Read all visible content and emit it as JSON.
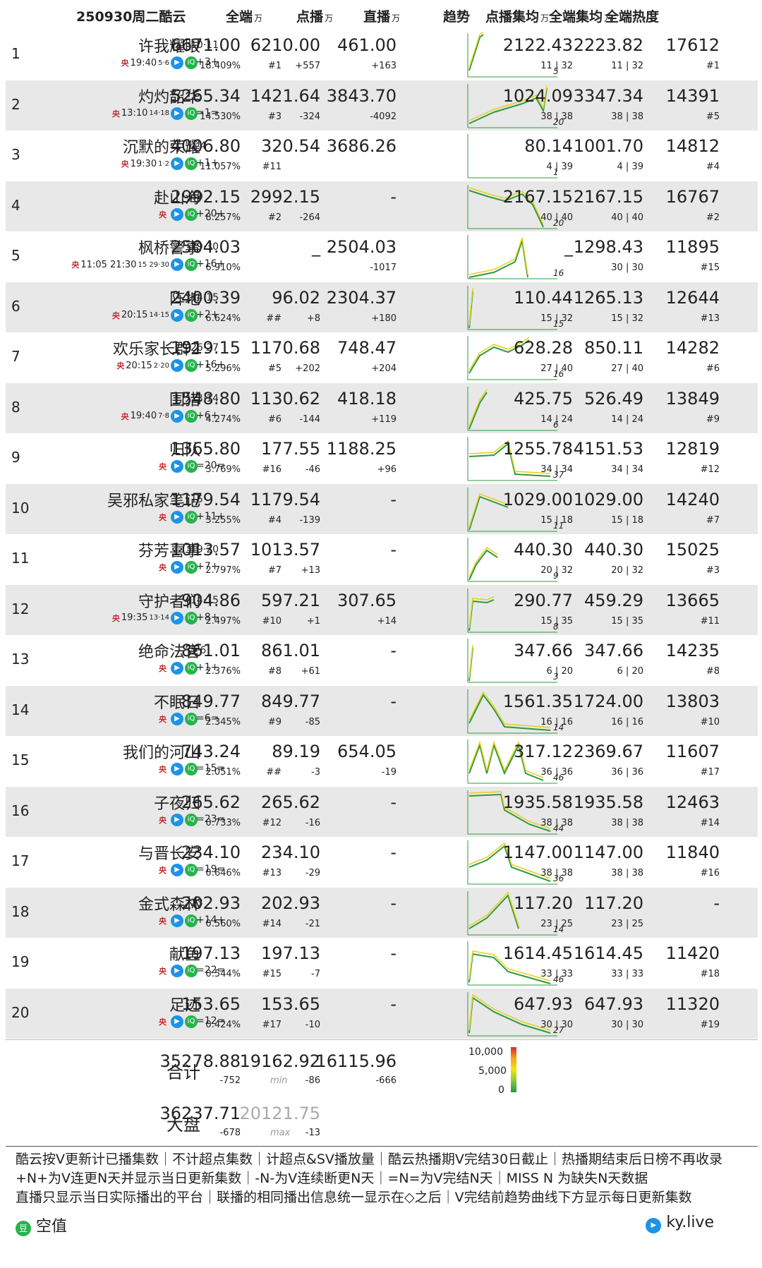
{
  "header": {
    "title": "250930周二酷云",
    "all": "全端",
    "vod": "点播",
    "live": "直播",
    "trend": "趋势",
    "vod_avg": "点播集均",
    "all_avg": "全端集均",
    "heat": "全端热度",
    "unit": "万"
  },
  "rows": [
    {
      "rank": "1",
      "name": "许我耀眼",
      "eps": "10·11",
      "time": "19:40",
      "sub_eps": "5·6",
      "upd": "+3+",
      "all": "6671.00",
      "share": "18.409%",
      "vod": "6210.00",
      "vod_rank": "#1",
      "vod_d": "+557",
      "live": "461.00",
      "live_d": "+163",
      "vod_avg": "2122.43",
      "vod_avg_r": "11 | 32",
      "all_avg": "2223.82",
      "all_avg_r": "11 | 32",
      "heat": "17612",
      "heat_r": "#1",
      "days": "5"
    },
    {
      "rank": "2",
      "name": "灼灼韶华",
      "eps": "",
      "time": "13:10",
      "sub_eps": "14·18",
      "upd": "=1=",
      "all": "5265.34",
      "share": "14.530%",
      "vod": "1421.64",
      "vod_rank": "#3",
      "vod_d": "-324",
      "live": "3843.70",
      "live_d": "-4092",
      "vod_avg": "1024.09",
      "vod_avg_r": "38 | 38",
      "all_avg": "3347.34",
      "all_avg_r": "38 | 38",
      "heat": "14391",
      "heat_r": "#5",
      "days": "20"
    },
    {
      "rank": "3",
      "name": "沉默的荣耀",
      "eps": "1·4",
      "time": "19:30",
      "sub_eps": "1·2",
      "upd": "+1+",
      "all": "4006.80",
      "share": "11.057%",
      "vod": "320.54",
      "vod_rank": "#11",
      "vod_d": "",
      "live": "3686.26",
      "live_d": "",
      "vod_avg": "80.14",
      "vod_avg_r": "4 | 39",
      "all_avg": "1001.70",
      "all_avg_r": "4 | 39",
      "heat": "14812",
      "heat_r": "#4",
      "days": "1"
    },
    {
      "rank": "4",
      "name": "赴山海",
      "eps": "40",
      "time": "",
      "sub_eps": "",
      "upd": "+20+",
      "all": "2992.15",
      "share": "8.257%",
      "vod": "2992.15",
      "vod_rank": "#2",
      "vod_d": "-264",
      "live": "-",
      "live_d": "",
      "vod_avg": "2167.15",
      "vod_avg_r": "40 | 40",
      "all_avg": "2167.15",
      "all_avg_r": "40 | 40",
      "heat": "16767",
      "heat_r": "#2",
      "days": "20"
    },
    {
      "rank": "5",
      "name": "枫桥警事",
      "eps": "29·30",
      "time": "11:05  21:30",
      "sub_eps": "15  29·30",
      "upd": "+16+",
      "all": "2504.03",
      "share": "6.910%",
      "vod": "_",
      "vod_rank": "",
      "vod_d": "",
      "live": "2504.03",
      "live_d": "-1017",
      "vod_avg": "_",
      "vod_avg_r": "",
      "all_avg": "1298.43",
      "all_avg_r": "30 | 30",
      "heat": "11895",
      "heat_r": "#15",
      "days": "16"
    },
    {
      "rank": "6",
      "name": "阵地",
      "eps": "14·15",
      "time": "20:15",
      "sub_eps": "14·15",
      "upd": "+2+",
      "all": "2400.39",
      "share": "6.624%",
      "vod": "96.02",
      "vod_rank": "##",
      "vod_d": "+8",
      "live": "2304.37",
      "live_d": "+180",
      "vod_avg": "110.44",
      "vod_avg_r": "15 | 32",
      "all_avg": "1265.13",
      "all_avg_r": "15 | 32",
      "heat": "12644",
      "heat_r": "#13",
      "days": "15"
    },
    {
      "rank": "7",
      "name": "欢乐家长群2",
      "eps": "26·27",
      "time": "20:15",
      "sub_eps": "2·20",
      "upd": "+16+",
      "all": "1919.15",
      "share": "5.296%",
      "vod": "1170.68",
      "vod_rank": "#5",
      "vod_d": "+202",
      "live": "748.47",
      "live_d": "+204",
      "vod_avg": "628.28",
      "vod_avg_r": "27 | 40",
      "all_avg": "850.11",
      "all_avg_r": "27 | 40",
      "heat": "14282",
      "heat_r": "#6",
      "days": "16"
    },
    {
      "rank": "8",
      "name": "围猎",
      "eps": "13·14",
      "time": "19:40",
      "sub_eps": "7·8",
      "upd": "+6+",
      "all": "1548.80",
      "share": "4.274%",
      "vod": "1130.62",
      "vod_rank": "#6",
      "vod_d": "-144",
      "live": "418.18",
      "live_d": "+119",
      "vod_avg": "425.75",
      "vod_avg_r": "14 | 24",
      "all_avg": "526.49",
      "all_avg_r": "14 | 24",
      "heat": "13849",
      "heat_r": "#9",
      "days": "6"
    },
    {
      "rank": "9",
      "name": "归队",
      "eps": "",
      "time": "",
      "sub_eps": "",
      "upd": "=20=",
      "all": "1365.80",
      "share": "3.769%",
      "vod": "177.55",
      "vod_rank": "#16",
      "vod_d": "-46",
      "live": "1188.25",
      "live_d": "+96",
      "vod_avg": "1255.78",
      "vod_avg_r": "34 | 34",
      "all_avg": "4151.53",
      "all_avg_r": "34 | 34",
      "heat": "12819",
      "heat_r": "#12",
      "days": "37"
    },
    {
      "rank": "10",
      "name": "吴邪私家笔记",
      "eps": "15",
      "time": "",
      "sub_eps": "",
      "upd": "+11+",
      "all": "1179.54",
      "share": "3.255%",
      "vod": "1179.54",
      "vod_rank": "#4",
      "vod_d": "-139",
      "live": "-",
      "live_d": "",
      "vod_avg": "1029.00",
      "vod_avg_r": "15 | 18",
      "all_avg": "1029.00",
      "all_avg_r": "15 | 18",
      "heat": "14240",
      "heat_r": "#7",
      "days": "11"
    },
    {
      "rank": "11",
      "name": "芬芳喜事",
      "eps": "19·20",
      "time": "",
      "sub_eps": "",
      "upd": "+7+",
      "all": "1013.57",
      "share": "2.797%",
      "vod": "1013.57",
      "vod_rank": "#7",
      "vod_d": "+13",
      "live": "-",
      "live_d": "",
      "vod_avg": "440.30",
      "vod_avg_r": "20 | 32",
      "all_avg": "440.30",
      "all_avg_r": "20 | 32",
      "heat": "15025",
      "heat_r": "#3",
      "days": "9"
    },
    {
      "rank": "12",
      "name": "守护者们",
      "eps": "14·15",
      "time": "19:35",
      "sub_eps": "13·14",
      "upd": "+8+",
      "all": "904.86",
      "share": "2.497%",
      "vod": "597.21",
      "vod_rank": "#10",
      "vod_d": "+1",
      "live": "307.65",
      "live_d": "+14",
      "vod_avg": "290.77",
      "vod_avg_r": "15 | 35",
      "all_avg": "459.29",
      "all_avg_r": "15 | 35",
      "heat": "13665",
      "heat_r": "#11",
      "days": "8"
    },
    {
      "rank": "13",
      "name": "绝命法官",
      "eps": "5·6",
      "time": "",
      "sub_eps": "",
      "upd": "+1+",
      "all": "861.01",
      "share": "2.376%",
      "vod": "861.01",
      "vod_rank": "#8",
      "vod_d": "+61",
      "live": "-",
      "live_d": "",
      "vod_avg": "347.66",
      "vod_avg_r": "6 | 20",
      "all_avg": "347.66",
      "all_avg_r": "6 | 20",
      "heat": "14235",
      "heat_r": "#8",
      "days": "3"
    },
    {
      "rank": "14",
      "name": "不眠日",
      "eps": "",
      "time": "",
      "sub_eps": "",
      "upd": "=6=",
      "all": "849.77",
      "share": "2.345%",
      "vod": "849.77",
      "vod_rank": "#9",
      "vod_d": "-85",
      "live": "-",
      "live_d": "",
      "vod_avg": "1561.35",
      "vod_avg_r": "16 | 16",
      "all_avg": "1724.00",
      "all_avg_r": "16 | 16",
      "heat": "13803",
      "heat_r": "#10",
      "days": "14"
    },
    {
      "rank": "15",
      "name": "我们的河山",
      "eps": "",
      "time": "",
      "sub_eps": "",
      "upd": "=15=",
      "all": "743.24",
      "share": "2.051%",
      "vod": "89.19",
      "vod_rank": "##",
      "vod_d": "-3",
      "live": "654.05",
      "live_d": "-19",
      "vod_avg": "317.12",
      "vod_avg_r": "36 | 36",
      "all_avg": "2369.67",
      "all_avg_r": "36 | 36",
      "heat": "11607",
      "heat_r": "#17",
      "days": "46"
    },
    {
      "rank": "16",
      "name": "子夜归",
      "eps": "",
      "time": "",
      "sub_eps": "",
      "upd": "=23=",
      "all": "265.62",
      "share": "0.733%",
      "vod": "265.62",
      "vod_rank": "#12",
      "vod_d": "-16",
      "live": "-",
      "live_d": "",
      "vod_avg": "1935.58",
      "vod_avg_r": "38 | 38",
      "all_avg": "1935.58",
      "all_avg_r": "38 | 38",
      "heat": "12463",
      "heat_r": "#14",
      "days": "44"
    },
    {
      "rank": "17",
      "name": "与晋长安",
      "eps": "",
      "time": "",
      "sub_eps": "",
      "upd": "=19=",
      "all": "234.10",
      "share": "0.646%",
      "vod": "234.10",
      "vod_rank": "#13",
      "vod_d": "-29",
      "live": "-",
      "live_d": "",
      "vod_avg": "1147.00",
      "vod_avg_r": "38 | 38",
      "all_avg": "1147.00",
      "all_avg_r": "38 | 38",
      "heat": "11840",
      "heat_r": "#16",
      "days": "36"
    },
    {
      "rank": "18",
      "name": "金式森林",
      "eps": "23",
      "time": "",
      "sub_eps": "",
      "upd": "+14+",
      "all": "202.93",
      "share": "0.560%",
      "vod": "202.93",
      "vod_rank": "#14",
      "vod_d": "-21",
      "live": "-",
      "live_d": "",
      "vod_avg": "117.20",
      "vod_avg_r": "23 | 25",
      "all_avg": "117.20",
      "all_avg_r": "23 | 25",
      "heat": "-",
      "heat_r": "",
      "days": "14"
    },
    {
      "rank": "19",
      "name": "献鱼",
      "eps": "",
      "time": "",
      "sub_eps": "",
      "upd": "=22=",
      "all": "197.13",
      "share": "0.544%",
      "vod": "197.13",
      "vod_rank": "#15",
      "vod_d": "-7",
      "live": "-",
      "live_d": "",
      "vod_avg": "1614.45",
      "vod_avg_r": "33 | 33",
      "all_avg": "1614.45",
      "all_avg_r": "33 | 33",
      "heat": "11420",
      "heat_r": "#18",
      "days": "46"
    },
    {
      "rank": "20",
      "name": "足迹",
      "eps": "",
      "time": "",
      "sub_eps": "",
      "upd": "=12=",
      "all": "153.65",
      "share": "0.424%",
      "vod": "153.65",
      "vod_rank": "#17",
      "vod_d": "-10",
      "live": "-",
      "live_d": "",
      "vod_avg": "647.93",
      "vod_avg_r": "30 | 30",
      "all_avg": "647.93",
      "all_avg_r": "30 | 30",
      "heat": "11320",
      "heat_r": "#19",
      "days": "27"
    }
  ],
  "total": {
    "label": "合计",
    "all": "35278.88",
    "all_d": "-752",
    "vod": "19162.92",
    "vod_d": "-86",
    "live": "16115.96",
    "live_d": "-666",
    "min": "min"
  },
  "market": {
    "label": "大盘",
    "all": "36237.71",
    "all_d": "-678",
    "vod": "20121.75",
    "vod_d": "-13",
    "max": "max"
  },
  "scale": {
    "top": "10,000",
    "mid": "5,000",
    "bottom": "0"
  },
  "notes": [
    "酷云按V更新计已播集数｜不计超点集数｜计超点&SV播放量｜酷云热播期V完结30日截止｜热播期结束后日榜不再收录",
    "+N+为V连更N天并显示当日更新集数｜-N-为V连续断更N天｜=N=为V完结N天｜MISS N 为缺失N天数据",
    "直播只显示当日实际播出的平台｜联播的相同播出信息统一显示在◇之后｜V完结前趋势曲线下方显示每日更新集数"
  ],
  "footer": {
    "left": "空值",
    "right": "ky.live"
  },
  "colors": {
    "accent_green": "#2e9b3e",
    "accent_yellow": "#e8cf1a",
    "row_alt": "#e8e8e8"
  }
}
